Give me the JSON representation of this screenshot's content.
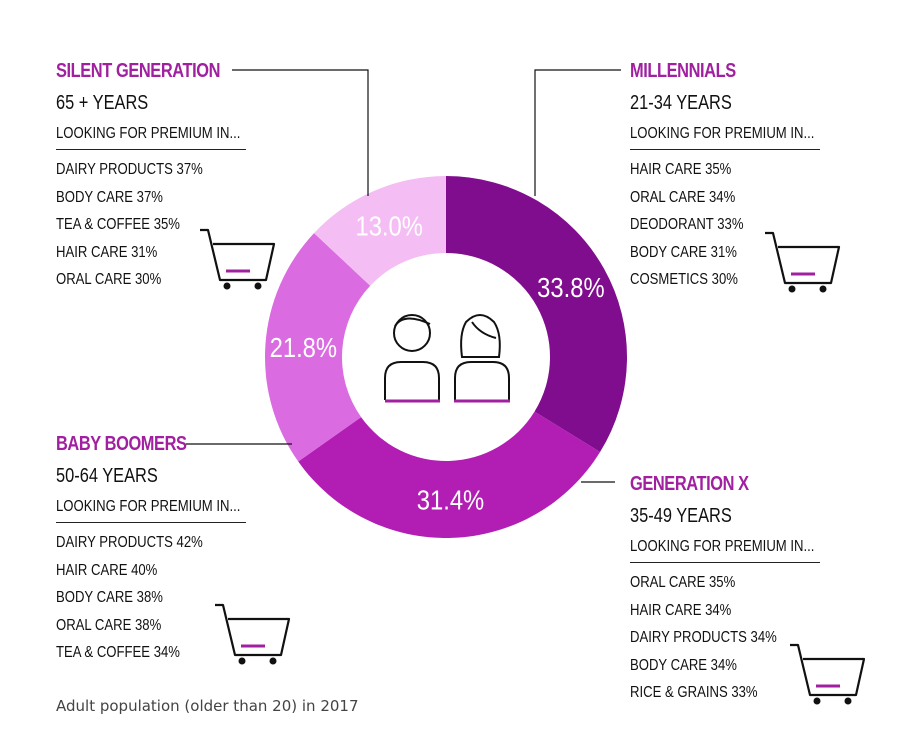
{
  "chart_data": {
    "type": "pie",
    "variant": "donut",
    "categories": [
      "Millennials",
      "Generation X",
      "Baby Boomers",
      "Silent Generation"
    ],
    "values": [
      33.8,
      31.4,
      21.8,
      13.0
    ],
    "labels": [
      "33.8%",
      "31.4%",
      "21.8%",
      "13.0%"
    ],
    "colors": [
      "#800d8e",
      "#b21eb4",
      "#da6be0",
      "#f4bdf3"
    ]
  },
  "groups": {
    "silent": {
      "title": "SILENT GENERATION",
      "age": "65 + YEARS",
      "intro": "LOOKING FOR PREMIUM IN...",
      "items": [
        "DAIRY PRODUCTS 37%",
        "BODY CARE 37%",
        "TEA & COFFEE 35%",
        "HAIR CARE 31%",
        "ORAL CARE 30%"
      ]
    },
    "millennials": {
      "title": "MILLENNIALS",
      "age": "21-34 YEARS",
      "intro": "LOOKING FOR PREMIUM IN...",
      "items": [
        "HAIR CARE 35%",
        "ORAL CARE 34%",
        "DEODORANT 33%",
        "BODY CARE 31%",
        "COSMETICS 30%"
      ]
    },
    "boomers": {
      "title": "BABY BOOMERS",
      "age": "50-64 YEARS",
      "intro": "LOOKING FOR PREMIUM IN...",
      "items": [
        "DAIRY PRODUCTS 42%",
        "HAIR CARE 40%",
        "BODY CARE 38%",
        "ORAL CARE 38%",
        "TEA & COFFEE 34%"
      ]
    },
    "genx": {
      "title": "GENERATION X",
      "age": "35-49 YEARS",
      "intro": "LOOKING FOR PREMIUM IN...",
      "items": [
        "ORAL CARE 35%",
        "HAIR CARE 34%",
        "DAIRY PRODUCTS 34%",
        "BODY CARE 34%",
        "RICE & GRAINS 33%"
      ]
    }
  },
  "caption": "Adult population (older than 20) in 2017",
  "icons": {
    "cart": "shopping-cart-icon",
    "man": "man-icon",
    "woman": "woman-icon"
  },
  "accent_color": "#a020a0"
}
